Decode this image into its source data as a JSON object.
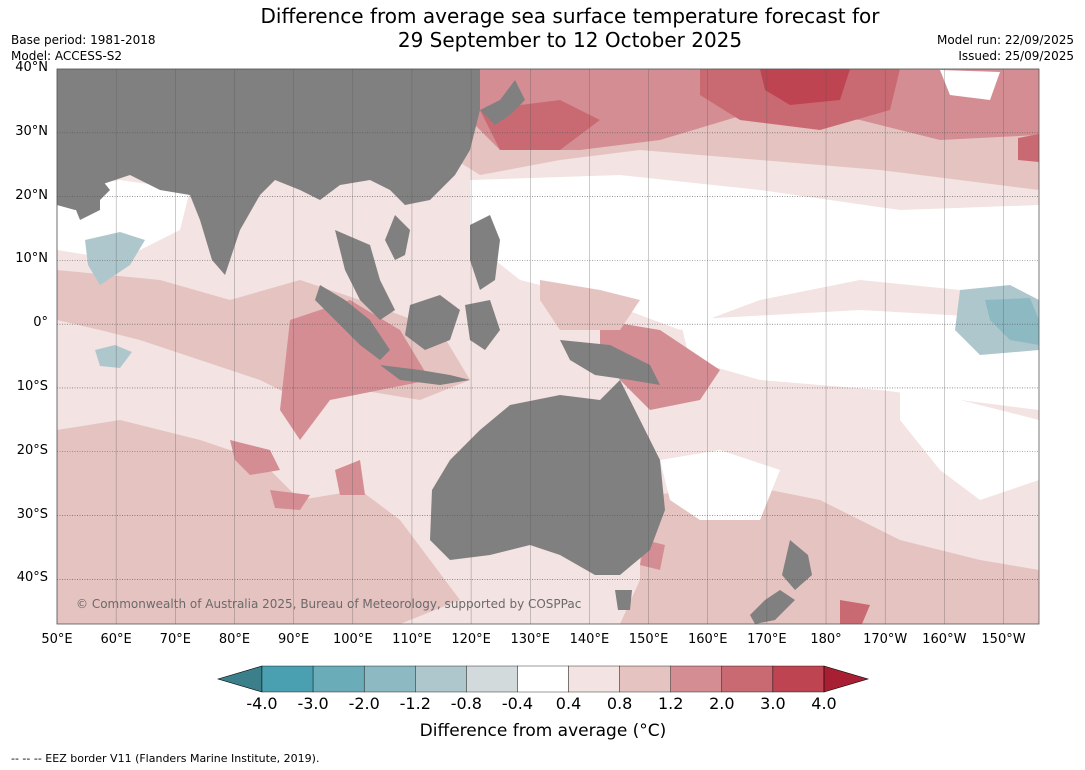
{
  "header": {
    "title_line1": "Difference from average sea surface temperature forecast for",
    "title_line2": "29 September to 12 October 2025",
    "base_period": "Base period: 1981-2018",
    "model": "Model: ACCESS-S2",
    "model_run": "Model run: 22/09/2025",
    "issued": "Issued: 25/09/2025"
  },
  "map": {
    "extent": {
      "lon_min": 50,
      "lon_max": 216,
      "lat_min": -47,
      "lat_max": 40
    },
    "lat_labels": [
      "40°N",
      "30°N",
      "20°N",
      "10°N",
      "0°",
      "10°S",
      "20°S",
      "30°S",
      "40°S"
    ],
    "lat_values": [
      40,
      30,
      20,
      10,
      0,
      -10,
      -20,
      -30,
      -40
    ],
    "lon_labels": [
      "50°E",
      "60°E",
      "70°E",
      "80°E",
      "90°E",
      "100°E",
      "110°E",
      "120°E",
      "130°E",
      "140°E",
      "150°E",
      "160°E",
      "170°E",
      "180°",
      "170°W",
      "160°W",
      "150°W"
    ],
    "lon_values": [
      50,
      60,
      70,
      80,
      90,
      100,
      110,
      120,
      130,
      140,
      150,
      160,
      170,
      180,
      190,
      200,
      210
    ],
    "copyright": "© Commonwealth of Australia 2025, Bureau of Meteorology, supported by COSPPac",
    "land_color": "#808080",
    "ocean_base_color": "#ffffff"
  },
  "colorbar": {
    "ticks": [
      "-4.0",
      "-3.0",
      "-2.0",
      "-1.2",
      "-0.8",
      "-0.4",
      "0.4",
      "0.8",
      "1.2",
      "2.0",
      "3.0",
      "4.0"
    ],
    "colors": [
      "#3a7f8a",
      "#4aa0b0",
      "#6aacb8",
      "#8cb9c2",
      "#aec7cc",
      "#d3dadb",
      "#ffffff",
      "#f3e3e2",
      "#e5c3c1",
      "#d48e93",
      "#c96a73",
      "#be4452",
      "#a81f34"
    ],
    "label": "Difference from average (°C)"
  },
  "footnote": "--  --  -- EEZ border V11 (Flanders Marine Institute, 2019)."
}
